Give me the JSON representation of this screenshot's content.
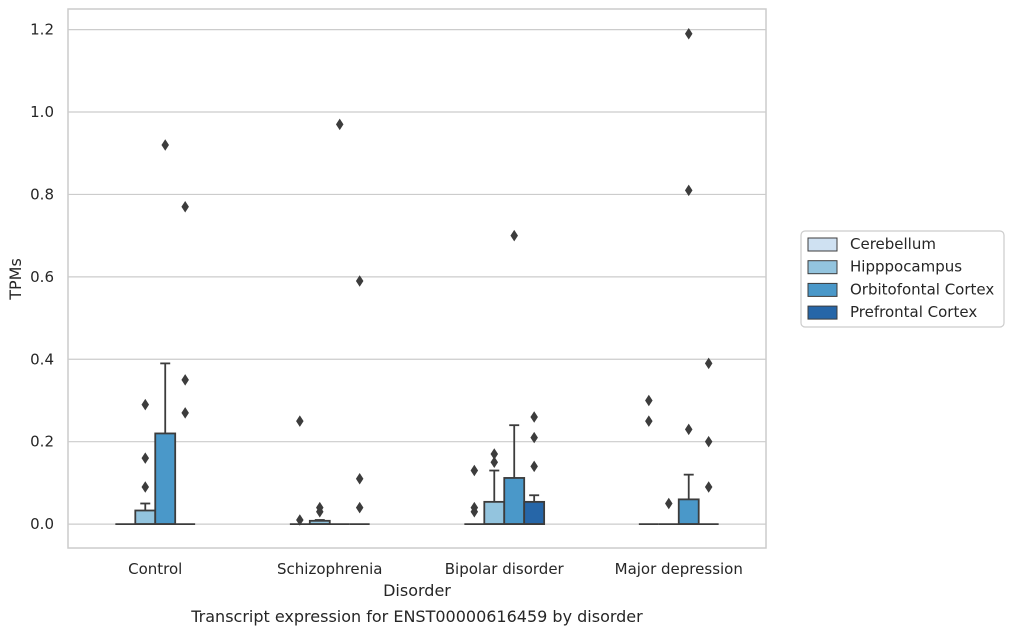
{
  "chart_data": {
    "type": "box",
    "title": "",
    "caption": "Transcript expression for ENST00000616459 by disorder",
    "xlabel": "Disorder",
    "ylabel": "TPMs",
    "ylim": [
      -0.058,
      1.25
    ],
    "yticks": [
      0.0,
      0.2,
      0.4,
      0.6,
      0.8,
      1.0,
      1.2
    ],
    "ytick_labels": [
      "0.0",
      "0.2",
      "0.4",
      "0.6",
      "0.8",
      "1.0",
      "1.2"
    ],
    "grid": "horizontal",
    "legend_position": "right",
    "categories": [
      "Control",
      "Schizophrenia",
      "Bipolar disorder",
      "Major depression"
    ],
    "series": [
      {
        "name": "Cerebellum",
        "color": "#cfe1f2",
        "boxes": [
          {
            "q1": 0,
            "median": 0,
            "q3": 0,
            "whislo": 0,
            "whishi": 0,
            "fliers": []
          },
          {
            "q1": 0,
            "median": 0,
            "q3": 0,
            "whislo": 0,
            "whishi": 0,
            "fliers": [
              0.01,
              0.25
            ]
          },
          {
            "q1": 0,
            "median": 0,
            "q3": 0,
            "whislo": 0,
            "whishi": 0,
            "fliers": [
              0.03,
              0.04,
              0.13
            ]
          },
          {
            "q1": 0,
            "median": 0,
            "q3": 0,
            "whislo": 0,
            "whishi": 0,
            "fliers": [
              0.25,
              0.3
            ]
          }
        ]
      },
      {
        "name": "Hipppocampus",
        "color": "#93c4de",
        "boxes": [
          {
            "q1": 0,
            "median": 0,
            "q3": 0.033,
            "whislo": 0,
            "whishi": 0.05,
            "fliers": [
              0.09,
              0.16,
              0.29
            ]
          },
          {
            "q1": 0,
            "median": 0,
            "q3": 0.008,
            "whislo": 0,
            "whishi": 0.01,
            "fliers": [
              0.03,
              0.04
            ]
          },
          {
            "q1": 0,
            "median": 0,
            "q3": 0.054,
            "whislo": 0,
            "whishi": 0.13,
            "fliers": [
              0.15,
              0.17
            ]
          },
          {
            "q1": 0,
            "median": 0,
            "q3": 0,
            "whislo": 0,
            "whishi": 0,
            "fliers": [
              0.05
            ]
          }
        ]
      },
      {
        "name": "Orbitofontal Cortex",
        "color": "#4a98c9",
        "boxes": [
          {
            "q1": 0,
            "median": 0,
            "q3": 0.22,
            "whislo": 0,
            "whishi": 0.39,
            "fliers": [
              0.92
            ]
          },
          {
            "q1": 0,
            "median": 0,
            "q3": 0,
            "whislo": 0,
            "whishi": 0,
            "fliers": [
              0.97
            ]
          },
          {
            "q1": 0,
            "median": 0,
            "q3": 0.112,
            "whislo": 0,
            "whishi": 0.24,
            "fliers": [
              0.7
            ]
          },
          {
            "q1": 0,
            "median": 0,
            "q3": 0.06,
            "whislo": 0,
            "whishi": 0.12,
            "fliers": [
              0.23,
              0.81,
              1.19
            ]
          }
        ]
      },
      {
        "name": "Prefrontal Cortex",
        "color": "#2666a8",
        "boxes": [
          {
            "q1": 0,
            "median": 0,
            "q3": 0,
            "whislo": 0,
            "whishi": 0,
            "fliers": [
              0.27,
              0.35,
              0.77
            ]
          },
          {
            "q1": 0,
            "median": 0,
            "q3": 0,
            "whislo": 0,
            "whishi": 0,
            "fliers": [
              0.04,
              0.11,
              0.59
            ]
          },
          {
            "q1": 0,
            "median": 0,
            "q3": 0.054,
            "whislo": 0,
            "whishi": 0.07,
            "fliers": [
              0.14,
              0.21,
              0.26
            ]
          },
          {
            "q1": 0,
            "median": 0,
            "q3": 0,
            "whislo": 0,
            "whishi": 0,
            "fliers": [
              0.09,
              0.2,
              0.39
            ]
          }
        ]
      }
    ]
  }
}
